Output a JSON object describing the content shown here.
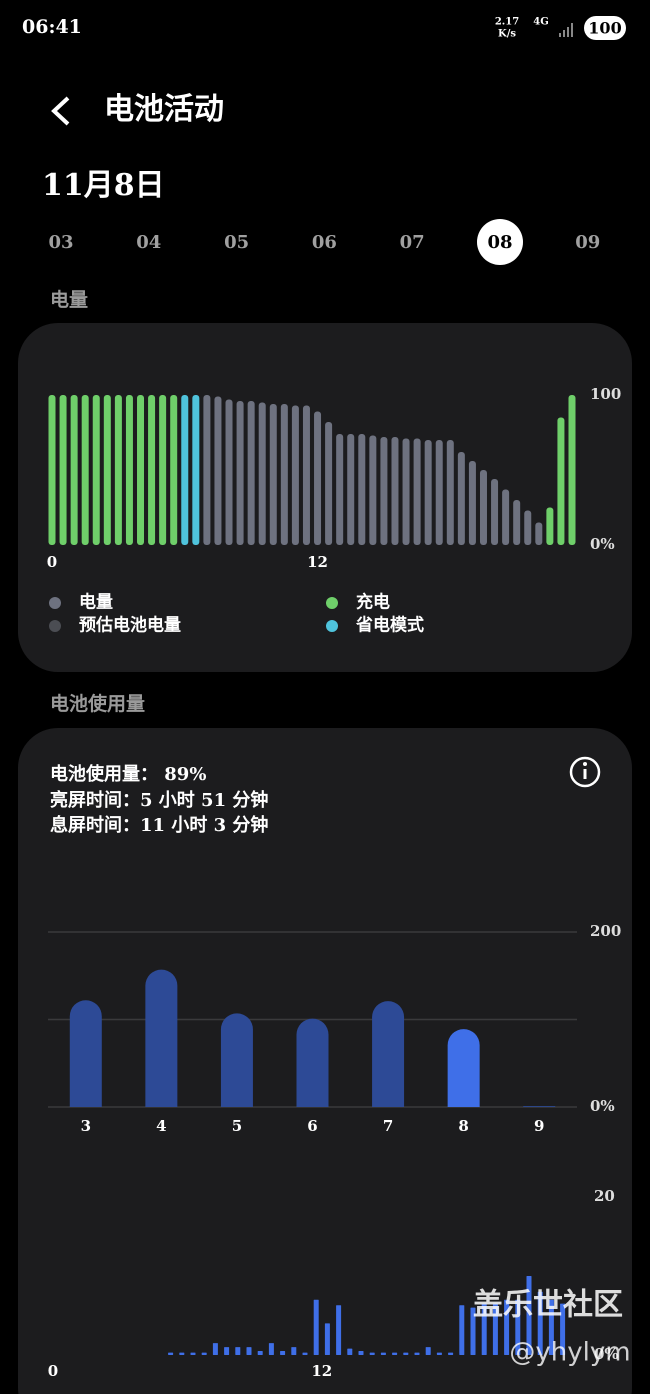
{
  "status_bar": {
    "time": "06:41",
    "net_speed": "2.17",
    "net_unit": "K/s",
    "network": "4G",
    "battery": "100"
  },
  "header": {
    "title": "电池活动",
    "date": "11月8日"
  },
  "day_tabs": {
    "days": [
      "03",
      "04",
      "05",
      "06",
      "07",
      "08",
      "09"
    ],
    "selected": 5
  },
  "sections": [
    "电量",
    "电池使用量"
  ],
  "usage_summary": [
    "电池使用量： 89%",
    "亮屏时间：5 小时 51 分钟",
    "息屏时间：11 小时 3 分钟"
  ],
  "watermark": {
    "brand": "盖乐世社区",
    "handle": "@yhylym"
  },
  "chart_data": [
    {
      "type": "bar",
      "x": [
        0,
        0.5,
        1,
        1.5,
        2,
        2.5,
        3,
        3.5,
        4,
        4.5,
        5,
        5.5,
        6,
        6.5,
        7,
        7.5,
        8,
        8.5,
        9,
        9.5,
        10,
        10.5,
        11,
        11.5,
        12,
        12.5,
        13,
        13.5,
        14,
        14.5,
        15,
        15.5,
        16,
        16.5,
        17,
        17.5,
        18,
        18.5,
        19,
        19.5,
        20,
        20.5,
        21,
        21.5,
        22,
        22.5,
        23,
        23.5
      ],
      "xlim": [
        0,
        23.5
      ],
      "xticks": [
        0,
        12
      ],
      "ylim": [
        0,
        100
      ],
      "yticks": [
        {
          "value": 0,
          "label": "0%"
        },
        100
      ],
      "series": [
        {
          "name": "电量",
          "color": "#6e7280",
          "values": [
            null,
            null,
            null,
            null,
            null,
            null,
            null,
            null,
            null,
            null,
            null,
            null,
            null,
            null,
            100,
            99,
            97,
            96,
            96,
            95,
            94,
            94,
            93,
            93,
            89,
            82,
            74,
            74,
            74,
            73,
            72,
            72,
            71,
            71,
            70,
            70,
            70,
            62,
            56,
            50,
            44,
            37,
            30,
            23,
            15,
            null,
            null,
            null
          ]
        },
        {
          "name": "预估电池电量",
          "color": "#4b4d53",
          "values": [
            null,
            null,
            null,
            null,
            null,
            null,
            null,
            null,
            null,
            null,
            null,
            null,
            null,
            null,
            null,
            null,
            null,
            null,
            null,
            null,
            null,
            null,
            null,
            null,
            null,
            null,
            null,
            null,
            null,
            null,
            null,
            null,
            null,
            null,
            null,
            null,
            null,
            null,
            null,
            null,
            null,
            null,
            null,
            null,
            null,
            null,
            null,
            null
          ]
        },
        {
          "name": "充电",
          "color": "#6fcf6a",
          "values": [
            100,
            100,
            100,
            100,
            100,
            100,
            100,
            100,
            100,
            100,
            100,
            100,
            null,
            null,
            null,
            null,
            null,
            null,
            null,
            null,
            null,
            null,
            null,
            null,
            null,
            null,
            null,
            null,
            null,
            null,
            null,
            null,
            null,
            null,
            null,
            null,
            null,
            null,
            null,
            null,
            null,
            null,
            null,
            null,
            null,
            25,
            85,
            100
          ]
        },
        {
          "name": "省电模式",
          "color": "#4fc3dc",
          "values": [
            null,
            null,
            null,
            null,
            null,
            null,
            null,
            null,
            null,
            null,
            null,
            null,
            100,
            100,
            null,
            null,
            null,
            null,
            null,
            null,
            null,
            null,
            null,
            null,
            null,
            null,
            null,
            null,
            null,
            null,
            null,
            null,
            null,
            null,
            null,
            null,
            null,
            null,
            null,
            null,
            null,
            null,
            null,
            null,
            null,
            null,
            null,
            null
          ]
        }
      ]
    },
    {
      "type": "column",
      "categories": [
        "3",
        "4",
        "5",
        "6",
        "7",
        "8",
        "9"
      ],
      "values": [
        122,
        157,
        107,
        101,
        121,
        89,
        1
      ],
      "colors": [
        "#2d4a96",
        "#2d4a96",
        "#2d4a96",
        "#2d4a96",
        "#2d4a96",
        "#3f6fe8",
        "#2d4a96"
      ],
      "ylim": [
        0,
        200
      ],
      "yticks": [
        {
          "value": 0,
          "label": "0%"
        },
        {
          "value": 100,
          "label": null
        },
        200
      ],
      "grid": true
    },
    {
      "type": "bar",
      "x": [
        0,
        0.5,
        1,
        1.5,
        2,
        2.5,
        3,
        3.5,
        4,
        4.5,
        5,
        5.5,
        6,
        6.5,
        7,
        7.5,
        8,
        8.5,
        9,
        9.5,
        10,
        10.5,
        11,
        11.5,
        12,
        12.5,
        13,
        13.5,
        14,
        14.5,
        15,
        15.5,
        16,
        16.5,
        17,
        17.5,
        18,
        18.5,
        19,
        19.5,
        20,
        20.5,
        21,
        21.5,
        22,
        22.5,
        23,
        23.5
      ],
      "xlim": [
        0,
        24
      ],
      "xticks": [
        0,
        12
      ],
      "ylim": [
        0,
        20
      ],
      "yticks": [
        {
          "value": 0,
          "label": "0%"
        },
        20
      ],
      "series": [
        {
          "name": "使用量",
          "color": "#3f6fe8",
          "values": [
            0,
            0,
            0,
            0,
            0,
            0,
            0,
            0,
            0,
            0,
            0.3,
            0.3,
            0.3,
            0.3,
            1.5,
            1,
            1,
            1,
            0.5,
            1.5,
            0.5,
            1,
            0.3,
            7,
            4,
            6.3,
            0.8,
            0.5,
            0.3,
            0.3,
            0.3,
            0.3,
            0.3,
            1,
            0.3,
            0.3,
            6.3,
            6,
            6.5,
            6.5,
            7,
            7,
            10,
            8,
            7,
            6.5,
            0,
            0
          ]
        }
      ]
    }
  ]
}
